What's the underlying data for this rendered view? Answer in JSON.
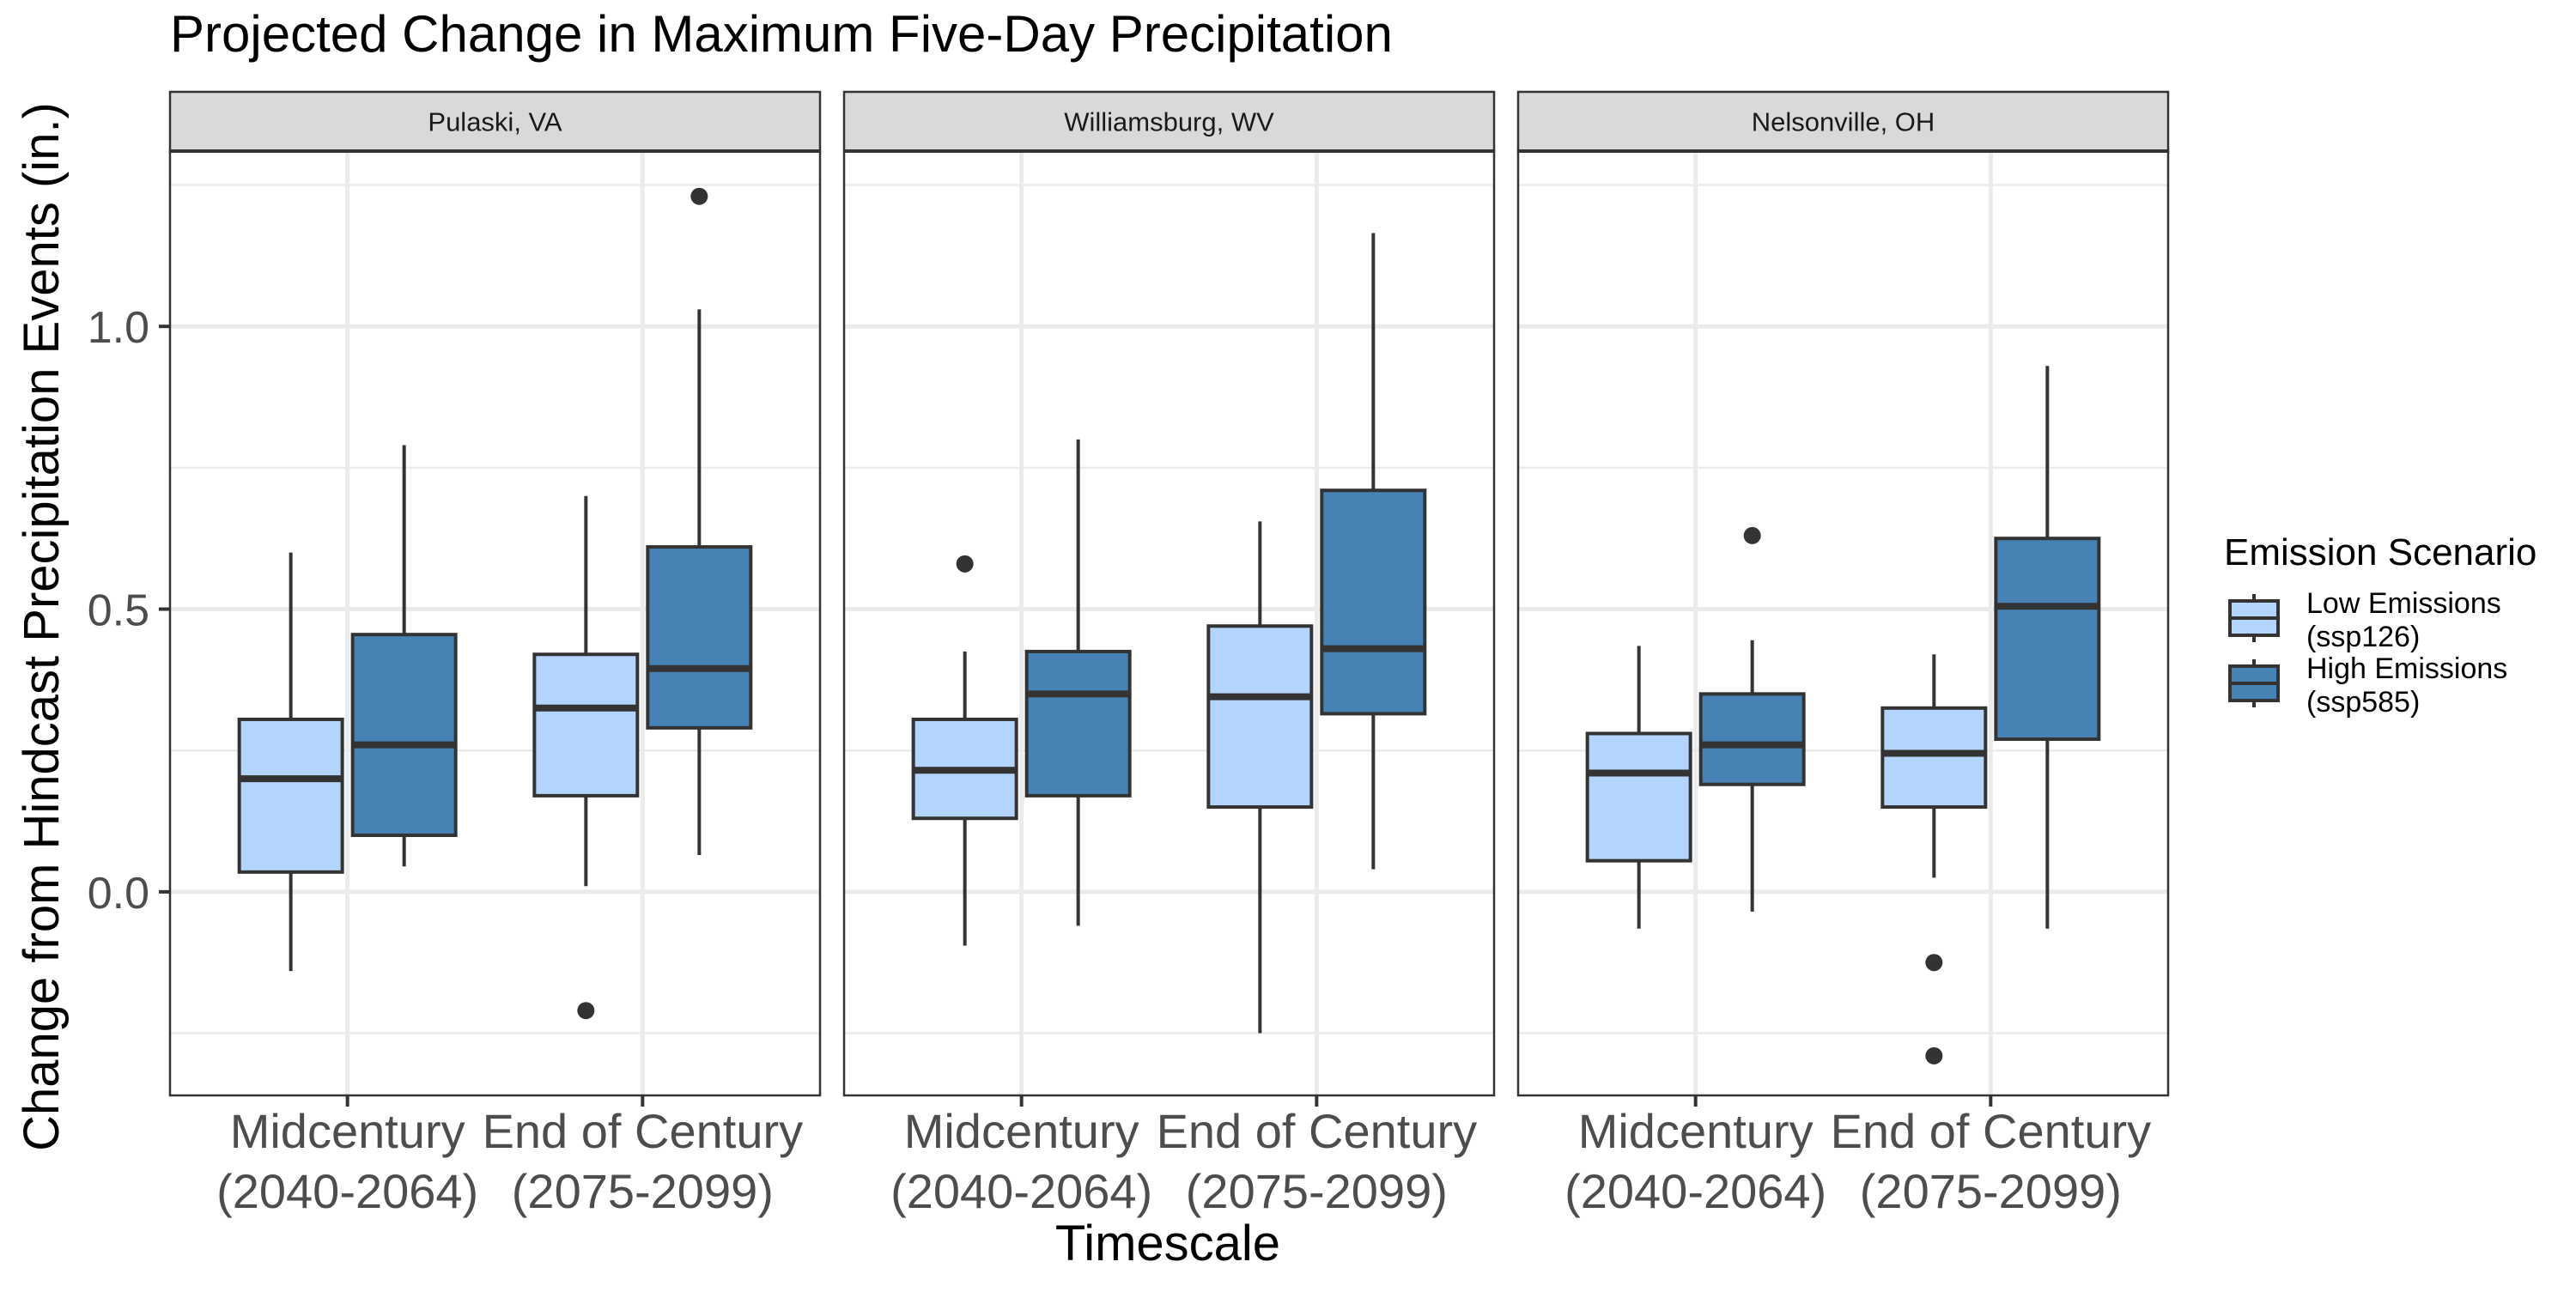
{
  "chart_data": {
    "type": "box",
    "title": "Projected Change in Maximum Five-Day Precipitation",
    "xlabel": "Timescale",
    "ylabel": "Change from Hindcast Precipitation Events (in.)",
    "ylim": [
      -0.36,
      1.31
    ],
    "y_ticks": [
      0.0,
      0.5,
      1.0
    ],
    "y_tick_labels": [
      "0.0",
      "0.5",
      "1.0"
    ],
    "y_minor_gridlines": [
      -0.25,
      0.25,
      0.75,
      1.25
    ],
    "grid": true,
    "categories": [
      "Midcentury\n(2040-2064)",
      "End of Century\n(2075-2099)"
    ],
    "category_lines": [
      [
        "Midcentury",
        "(2040-2064)"
      ],
      [
        "End of Century",
        "(2075-2099)"
      ]
    ],
    "legend": {
      "title": "Emission Scenario",
      "position": "right",
      "entries": [
        {
          "key": "low",
          "lines": [
            "Low Emissions",
            "(ssp126)"
          ],
          "color": "#b3d4fc"
        },
        {
          "key": "high",
          "lines": [
            "High Emissions",
            "(ssp585)"
          ],
          "color": "#4682b4"
        }
      ]
    },
    "panels": [
      {
        "name": "Pulaski, VA",
        "boxes": [
          {
            "category": 0,
            "series": "low",
            "whisker_low": -0.14,
            "q1": 0.035,
            "median": 0.2,
            "q3": 0.305,
            "whisker_high": 0.6,
            "outliers": []
          },
          {
            "category": 0,
            "series": "high",
            "whisker_low": 0.045,
            "q1": 0.1,
            "median": 0.26,
            "q3": 0.455,
            "whisker_high": 0.79,
            "outliers": []
          },
          {
            "category": 1,
            "series": "low",
            "whisker_low": 0.01,
            "q1": 0.17,
            "median": 0.325,
            "q3": 0.42,
            "whisker_high": 0.7,
            "outliers": [
              -0.21
            ]
          },
          {
            "category": 1,
            "series": "high",
            "whisker_low": 0.065,
            "q1": 0.29,
            "median": 0.395,
            "q3": 0.61,
            "whisker_high": 1.03,
            "outliers": [
              1.23
            ]
          }
        ]
      },
      {
        "name": "Williamsburg, WV",
        "boxes": [
          {
            "category": 0,
            "series": "low",
            "whisker_low": -0.095,
            "q1": 0.13,
            "median": 0.215,
            "q3": 0.305,
            "whisker_high": 0.425,
            "outliers": [
              0.58
            ]
          },
          {
            "category": 0,
            "series": "high",
            "whisker_low": -0.06,
            "q1": 0.17,
            "median": 0.35,
            "q3": 0.425,
            "whisker_high": 0.8,
            "outliers": []
          },
          {
            "category": 1,
            "series": "low",
            "whisker_low": -0.25,
            "q1": 0.15,
            "median": 0.345,
            "q3": 0.47,
            "whisker_high": 0.655,
            "outliers": []
          },
          {
            "category": 1,
            "series": "high",
            "whisker_low": 0.04,
            "q1": 0.315,
            "median": 0.43,
            "q3": 0.71,
            "whisker_high": 1.165,
            "outliers": []
          }
        ]
      },
      {
        "name": "Nelsonville, OH",
        "boxes": [
          {
            "category": 0,
            "series": "low",
            "whisker_low": -0.065,
            "q1": 0.055,
            "median": 0.21,
            "q3": 0.28,
            "whisker_high": 0.435,
            "outliers": []
          },
          {
            "category": 0,
            "series": "high",
            "whisker_low": -0.035,
            "q1": 0.19,
            "median": 0.26,
            "q3": 0.35,
            "whisker_high": 0.445,
            "outliers": [
              0.63
            ]
          },
          {
            "category": 1,
            "series": "low",
            "whisker_low": 0.025,
            "q1": 0.15,
            "median": 0.245,
            "q3": 0.325,
            "whisker_high": 0.42,
            "outliers": [
              -0.125,
              -0.29
            ]
          },
          {
            "category": 1,
            "series": "high",
            "whisker_low": -0.065,
            "q1": 0.27,
            "median": 0.505,
            "q3": 0.625,
            "whisker_high": 0.93,
            "outliers": []
          }
        ]
      }
    ],
    "colors": {
      "panel_border": "#333333",
      "strip_fill": "#d9d9d9",
      "grid": "#ebebeb",
      "box_stroke": "#333333",
      "outlier": "#333333",
      "axis_text": "#4d4d4d",
      "title_text": "#000000"
    }
  }
}
